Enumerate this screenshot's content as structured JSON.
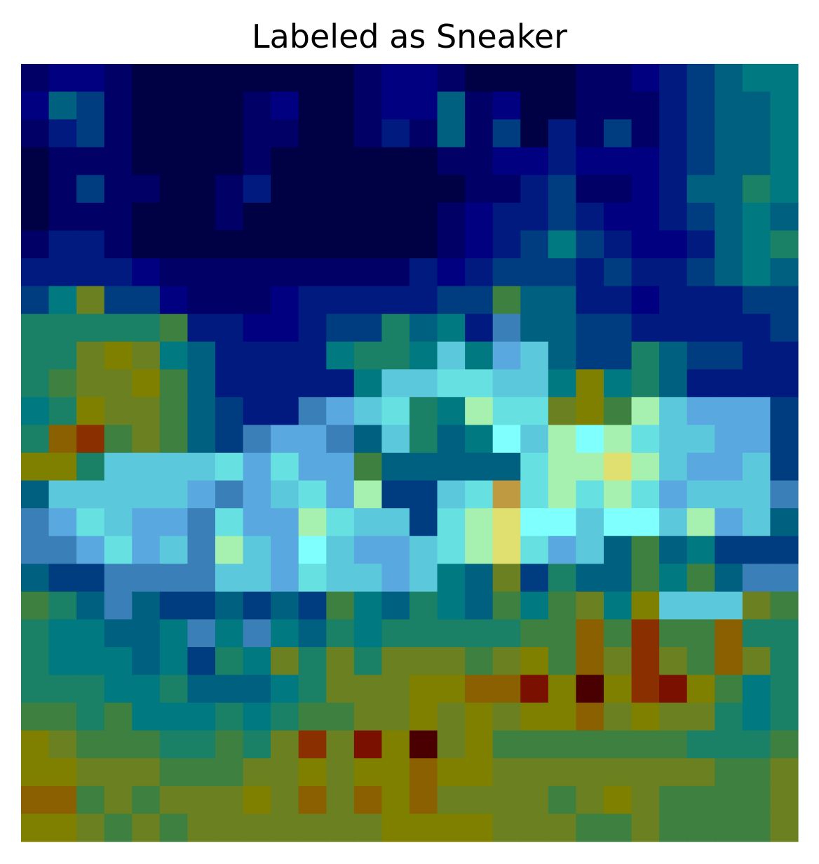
{
  "chart_data": {
    "type": "heatmap",
    "title": "Labeled as Sneaker",
    "rows": 28,
    "cols": 28,
    "axes_visible": false,
    "grid": false,
    "legend": "none",
    "overlay": "saliency heatmap (jet colormap) blended over a grayscale 28x28 image",
    "palette": [
      "#000044",
      "#000066",
      "#000080",
      "#001a80",
      "#003d80",
      "#006080",
      "#007a80",
      "#1a8066",
      "#3d8040",
      "#6b8020",
      "#808000",
      "#8a6000",
      "#8a3000",
      "#7a1000",
      "#4a0000",
      "#3a7fb8",
      "#5aa8e0",
      "#5cc8dc",
      "#66e0e0",
      "#80ffff",
      "#a6f0b0",
      "#e0e070",
      "#c09a40"
    ],
    "cells": [
      [
        1,
        2,
        2,
        1,
        0,
        0,
        0,
        0,
        0,
        0,
        0,
        0,
        1,
        2,
        2,
        1,
        0,
        0,
        0,
        0,
        1,
        1,
        2,
        3,
        4,
        5,
        6,
        6
      ],
      [
        2,
        5,
        4,
        1,
        0,
        0,
        0,
        0,
        1,
        2,
        0,
        0,
        1,
        2,
        2,
        5,
        1,
        2,
        0,
        0,
        1,
        1,
        1,
        3,
        4,
        5,
        5,
        6
      ],
      [
        1,
        3,
        4,
        1,
        0,
        0,
        0,
        0,
        1,
        1,
        0,
        0,
        1,
        3,
        1,
        5,
        1,
        4,
        0,
        3,
        1,
        4,
        1,
        3,
        4,
        5,
        5,
        6
      ],
      [
        0,
        1,
        1,
        1,
        0,
        0,
        0,
        0,
        1,
        0,
        0,
        0,
        0,
        0,
        0,
        1,
        1,
        2,
        2,
        3,
        2,
        2,
        2,
        3,
        4,
        5,
        5,
        6
      ],
      [
        0,
        1,
        4,
        1,
        1,
        0,
        0,
        1,
        3,
        0,
        0,
        0,
        0,
        0,
        0,
        0,
        1,
        1,
        3,
        4,
        1,
        1,
        2,
        3,
        5,
        5,
        7,
        6
      ],
      [
        0,
        1,
        1,
        1,
        0,
        0,
        0,
        1,
        0,
        0,
        0,
        0,
        0,
        0,
        0,
        1,
        2,
        3,
        3,
        4,
        3,
        2,
        2,
        3,
        4,
        5,
        6,
        5
      ],
      [
        1,
        3,
        3,
        1,
        0,
        0,
        0,
        0,
        0,
        0,
        0,
        0,
        0,
        0,
        0,
        1,
        2,
        3,
        4,
        6,
        4,
        3,
        2,
        2,
        3,
        5,
        6,
        7
      ],
      [
        3,
        3,
        3,
        3,
        2,
        1,
        1,
        1,
        1,
        1,
        1,
        1,
        1,
        1,
        3,
        2,
        3,
        4,
        4,
        4,
        3,
        4,
        3,
        3,
        4,
        5,
        6,
        5
      ],
      [
        4,
        6,
        9,
        4,
        4,
        2,
        1,
        1,
        1,
        2,
        3,
        3,
        3,
        3,
        3,
        4,
        4,
        8,
        5,
        5,
        3,
        3,
        2,
        3,
        3,
        3,
        4,
        4
      ],
      [
        7,
        7,
        7,
        7,
        7,
        8,
        3,
        3,
        2,
        2,
        3,
        4,
        4,
        7,
        5,
        6,
        3,
        15,
        5,
        5,
        4,
        4,
        3,
        3,
        3,
        3,
        3,
        4
      ],
      [
        7,
        7,
        9,
        10,
        9,
        6,
        5,
        3,
        3,
        3,
        3,
        6,
        7,
        7,
        6,
        17,
        6,
        16,
        17,
        5,
        4,
        4,
        7,
        5,
        4,
        4,
        3,
        3
      ],
      [
        7,
        8,
        9,
        9,
        10,
        8,
        5,
        3,
        3,
        3,
        3,
        3,
        6,
        17,
        17,
        18,
        18,
        17,
        17,
        6,
        10,
        6,
        7,
        5,
        3,
        3,
        3,
        3
      ],
      [
        6,
        7,
        10,
        9,
        9,
        8,
        5,
        4,
        3,
        3,
        15,
        16,
        17,
        18,
        7,
        6,
        20,
        18,
        18,
        9,
        10,
        8,
        20,
        17,
        16,
        16,
        16,
        4
      ],
      [
        7,
        11,
        12,
        8,
        9,
        8,
        5,
        4,
        15,
        16,
        16,
        15,
        5,
        17,
        7,
        5,
        6,
        19,
        17,
        20,
        19,
        20,
        18,
        17,
        17,
        16,
        16,
        4
      ],
      [
        10,
        10,
        7,
        17,
        17,
        17,
        17,
        18,
        16,
        18,
        16,
        16,
        8,
        5,
        5,
        5,
        5,
        5,
        18,
        20,
        20,
        21,
        20,
        17,
        16,
        16,
        17,
        4
      ],
      [
        5,
        17,
        17,
        17,
        17,
        17,
        16,
        15,
        16,
        17,
        18,
        16,
        20,
        4,
        4,
        17,
        18,
        22,
        18,
        20,
        18,
        20,
        18,
        16,
        17,
        17,
        17,
        15
      ],
      [
        15,
        16,
        18,
        17,
        16,
        16,
        15,
        18,
        16,
        16,
        20,
        18,
        17,
        17,
        4,
        18,
        20,
        21,
        19,
        19,
        17,
        19,
        19,
        17,
        20,
        16,
        17,
        5
      ],
      [
        15,
        15,
        16,
        18,
        16,
        17,
        15,
        20,
        17,
        16,
        19,
        17,
        16,
        16,
        17,
        18,
        20,
        21,
        18,
        16,
        17,
        5,
        8,
        5,
        6,
        4,
        4,
        4
      ],
      [
        5,
        4,
        4,
        15,
        15,
        15,
        15,
        17,
        17,
        16,
        18,
        17,
        17,
        16,
        17,
        6,
        5,
        9,
        4,
        7,
        5,
        5,
        8,
        6,
        8,
        5,
        15,
        15
      ],
      [
        8,
        7,
        5,
        15,
        5,
        4,
        4,
        5,
        4,
        5,
        4,
        8,
        6,
        5,
        7,
        6,
        5,
        8,
        6,
        8,
        9,
        6,
        10,
        17,
        17,
        17,
        9,
        8
      ],
      [
        7,
        6,
        6,
        5,
        5,
        6,
        15,
        6,
        15,
        6,
        5,
        7,
        6,
        7,
        7,
        7,
        7,
        7,
        8,
        8,
        11,
        8,
        12,
        8,
        8,
        11,
        7,
        7
      ],
      [
        7,
        6,
        6,
        6,
        5,
        6,
        4,
        7,
        6,
        9,
        7,
        9,
        7,
        9,
        9,
        9,
        8,
        9,
        10,
        8,
        11,
        9,
        12,
        9,
        8,
        11,
        9,
        7
      ],
      [
        7,
        7,
        7,
        6,
        6,
        7,
        5,
        5,
        5,
        6,
        7,
        9,
        9,
        9,
        10,
        10,
        11,
        11,
        13,
        10,
        14,
        10,
        12,
        13,
        10,
        8,
        6,
        7
      ],
      [
        8,
        8,
        7,
        8,
        6,
        6,
        6,
        7,
        6,
        7,
        8,
        8,
        9,
        9,
        10,
        9,
        10,
        9,
        10,
        10,
        11,
        9,
        10,
        9,
        9,
        7,
        6,
        7
      ],
      [
        10,
        9,
        8,
        8,
        8,
        7,
        7,
        8,
        7,
        9,
        12,
        9,
        13,
        10,
        14,
        9,
        10,
        8,
        8,
        8,
        8,
        8,
        8,
        8,
        7,
        7,
        7,
        8
      ],
      [
        10,
        10,
        9,
        9,
        9,
        8,
        8,
        8,
        9,
        9,
        10,
        9,
        10,
        10,
        11,
        10,
        10,
        9,
        9,
        9,
        9,
        9,
        9,
        9,
        9,
        8,
        8,
        9
      ],
      [
        11,
        11,
        8,
        9,
        8,
        9,
        9,
        9,
        10,
        9,
        11,
        9,
        11,
        10,
        11,
        9,
        9,
        9,
        9,
        8,
        9,
        10,
        9,
        8,
        8,
        8,
        8,
        9
      ],
      [
        10,
        10,
        9,
        8,
        9,
        8,
        9,
        9,
        9,
        9,
        9,
        9,
        9,
        10,
        10,
        10,
        10,
        9,
        9,
        9,
        8,
        8,
        9,
        8,
        8,
        8,
        8,
        9
      ]
    ]
  }
}
